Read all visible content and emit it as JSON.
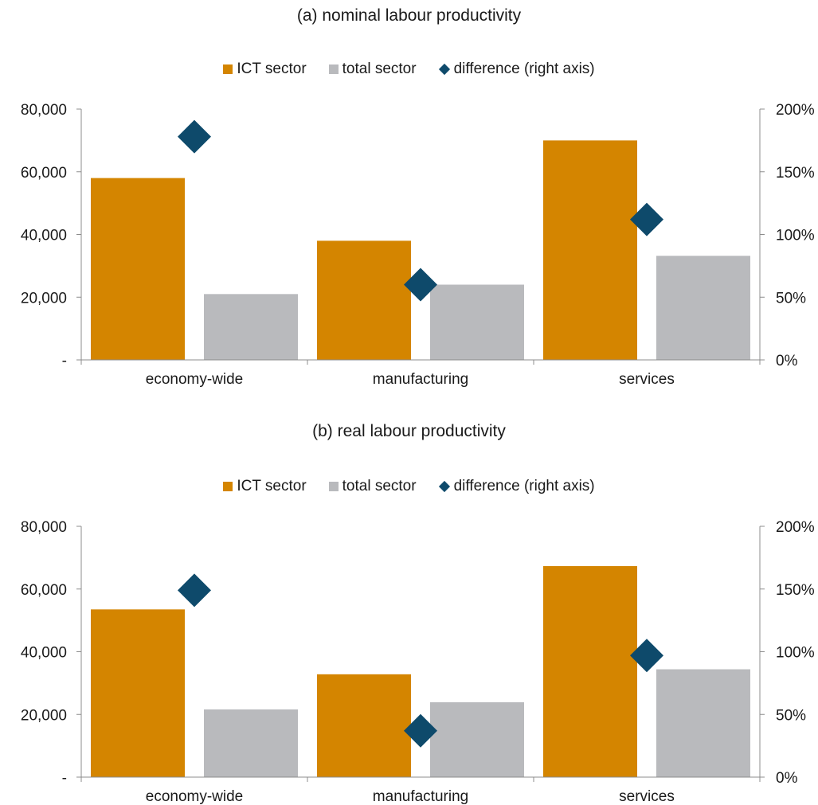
{
  "colors": {
    "ict": "#d48500",
    "total": "#b9babd",
    "difference": "#0e4a6b"
  },
  "legend": {
    "ict": "ICT sector",
    "total": "total sector",
    "difference": "difference (right axis)"
  },
  "chart_data": [
    {
      "type": "bar",
      "title": "(a) nominal labour productivity",
      "categories": [
        "economy-wide",
        "manufacturing",
        "services"
      ],
      "series": [
        {
          "name": "ICT sector",
          "type": "bar",
          "axis": "left",
          "values": [
            58000,
            38000,
            70000
          ]
        },
        {
          "name": "total sector",
          "type": "bar",
          "axis": "left",
          "values": [
            21000,
            24000,
            33200
          ]
        },
        {
          "name": "difference (right axis)",
          "type": "scatter",
          "marker": "diamond",
          "axis": "right",
          "values": [
            178,
            60,
            112
          ]
        }
      ],
      "ylim": [
        0,
        80000
      ],
      "yticks": [
        "-",
        "20,000",
        "40,000",
        "60,000",
        "80,000"
      ],
      "y2lim": [
        0,
        200
      ],
      "y2ticks": [
        "0%",
        "50%",
        "100%",
        "150%",
        "200%"
      ],
      "legend_position": "top"
    },
    {
      "type": "bar",
      "title": "(b) real labour productivity",
      "categories": [
        "economy-wide",
        "manufacturing",
        "services"
      ],
      "series": [
        {
          "name": "ICT sector",
          "type": "bar",
          "axis": "left",
          "values": [
            53500,
            32800,
            67300
          ]
        },
        {
          "name": "total sector",
          "type": "bar",
          "axis": "left",
          "values": [
            21600,
            23900,
            34400
          ]
        },
        {
          "name": "difference (right axis)",
          "type": "scatter",
          "marker": "diamond",
          "axis": "right",
          "values": [
            149,
            37,
            97
          ]
        }
      ],
      "ylim": [
        0,
        80000
      ],
      "yticks": [
        "-",
        "20,000",
        "40,000",
        "60,000",
        "80,000"
      ],
      "y2lim": [
        0,
        200
      ],
      "y2ticks": [
        "0%",
        "50%",
        "100%",
        "150%",
        "200%"
      ],
      "legend_position": "top"
    }
  ]
}
